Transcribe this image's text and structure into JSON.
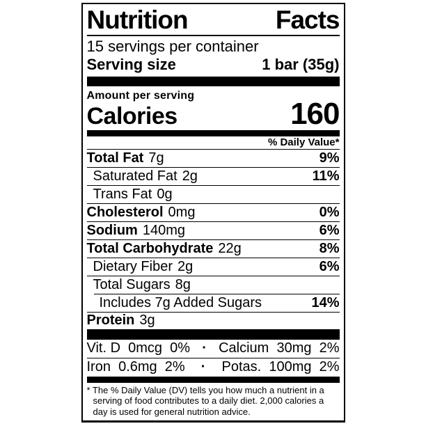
{
  "label": {
    "title": {
      "left": "Nutrition",
      "right": "Facts"
    },
    "servings_per_container": "15 servings per container",
    "serving_size": {
      "label": "Serving size",
      "value": "1 bar (35g)"
    },
    "amount_per_serving": "Amount per serving",
    "calories": {
      "label": "Calories",
      "value": "160"
    },
    "daily_value_header": "% Daily Value*",
    "nutrients": [
      {
        "name": "Total Fat",
        "amount": "7g",
        "dv": "9%"
      },
      {
        "name": "Saturated Fat",
        "amount": "2g",
        "dv": "11%"
      },
      {
        "name": "Trans Fat",
        "amount": "0g",
        "dv": ""
      },
      {
        "name": "Cholesterol",
        "amount": "0mg",
        "dv": "0%"
      },
      {
        "name": "Sodium",
        "amount": "140mg",
        "dv": "6%"
      },
      {
        "name": "Total Carbohydrate",
        "amount": "22g",
        "dv": "8%"
      },
      {
        "name": "Dietary Fiber",
        "amount": "2g",
        "dv": "6%"
      },
      {
        "name": "Total Sugars",
        "amount": "8g",
        "dv": ""
      },
      {
        "name": "Includes 7g Added Sugars",
        "amount": "",
        "dv": "14%"
      },
      {
        "name": "Protein",
        "amount": "3g",
        "dv": ""
      }
    ],
    "micronutrients": {
      "bullet": "·",
      "rows": [
        {
          "left": "Vit. D  0mcg  0%",
          "right": "Calcium  30mg  2%"
        },
        {
          "left": "Iron  0.6mg  2%",
          "right": "Potas.  100mg  2%"
        }
      ]
    },
    "footnote": "* The % Daily Value (DV) tells you how much a nutrient in a serving of food contributes to a daily diet. 2,000 calories a day is used for general nutrition advice.",
    "colors": {
      "ink": "#000000",
      "background": "#ffffff"
    }
  }
}
